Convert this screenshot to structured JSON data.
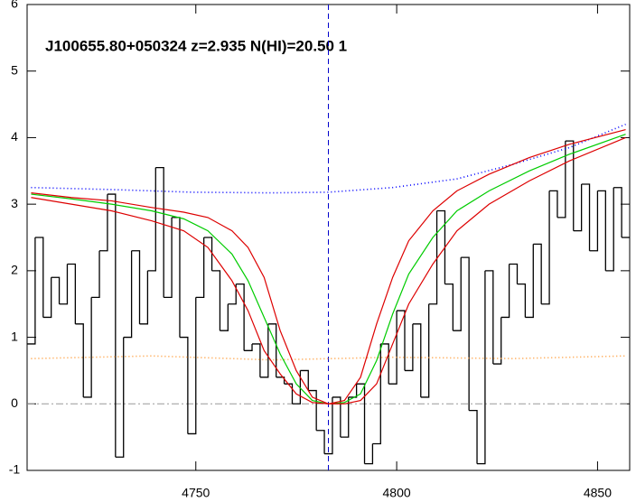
{
  "chart_data": {
    "type": "line",
    "annotation": "J100655.80+050324 z=2.935 N(HI)=20.50 1",
    "xlim": [
      4708,
      4858
    ],
    "ylim": [
      -1,
      6
    ],
    "xticks": [
      4750,
      4800,
      4850
    ],
    "yticks": [
      -1,
      0,
      1,
      2,
      3,
      4,
      5,
      6
    ],
    "zero_line": 0,
    "vline": 4783,
    "series": [
      {
        "color": "#000000",
        "steps": true,
        "dash": "none",
        "x": [
          4709,
          4711,
          4713,
          4715,
          4717,
          4719,
          4721,
          4723,
          4725,
          4727,
          4729,
          4731,
          4733,
          4735,
          4737,
          4739,
          4741,
          4743,
          4745,
          4747,
          4749,
          4751,
          4753,
          4755,
          4757,
          4759,
          4761,
          4763,
          4765,
          4767,
          4769,
          4771,
          4773,
          4775,
          4777,
          4779,
          4781,
          4783,
          4785,
          4787,
          4789,
          4791,
          4793,
          4795,
          4797,
          4799,
          4801,
          4803,
          4805,
          4807,
          4809,
          4811,
          4813,
          4815,
          4817,
          4819,
          4821,
          4823,
          4825,
          4827,
          4829,
          4831,
          4833,
          4835,
          4837,
          4839,
          4841,
          4843,
          4845,
          4847,
          4849,
          4851,
          4853,
          4855,
          4857
        ],
        "values": [
          0.9,
          2.5,
          1.3,
          1.9,
          1.5,
          2.1,
          1.2,
          0.1,
          1.6,
          2.3,
          3.15,
          -0.8,
          1.0,
          2.3,
          1.2,
          2.0,
          3.55,
          1.6,
          2.8,
          1.0,
          -0.45,
          1.6,
          2.5,
          2.0,
          1.1,
          1.5,
          1.8,
          0.8,
          0.9,
          0.4,
          1.2,
          0.4,
          0.3,
          0.0,
          0.5,
          0.2,
          -0.4,
          -0.75,
          0.1,
          -0.5,
          0.1,
          0.3,
          -0.9,
          -0.6,
          0.9,
          0.3,
          1.4,
          0.5,
          1.2,
          0.1,
          1.5,
          2.9,
          1.8,
          1.1,
          2.2,
          -0.1,
          -0.9,
          2.0,
          0.6,
          1.3,
          2.1,
          1.8,
          1.3,
          2.4,
          1.5,
          3.2,
          2.8,
          3.95,
          2.6,
          3.3,
          2.3,
          3.2,
          2.0,
          3.25,
          2.5
        ]
      },
      {
        "color": "#ff9933",
        "steps": false,
        "dash": "1 3",
        "x": [
          4709,
          4739,
          4769,
          4799,
          4829,
          4857
        ],
        "values": [
          0.68,
          0.72,
          0.66,
          0.7,
          0.68,
          0.72
        ]
      },
      {
        "color": "#0000ff",
        "steps": false,
        "dash": "1 3",
        "x": [
          4709,
          4729,
          4749,
          4769,
          4783,
          4799,
          4815,
          4829,
          4843,
          4857
        ],
        "values": [
          3.25,
          3.22,
          3.18,
          3.17,
          3.18,
          3.25,
          3.38,
          3.6,
          3.85,
          4.2
        ]
      },
      {
        "color": "#00cc00",
        "steps": false,
        "dash": "none",
        "x": [
          4709,
          4719,
          4729,
          4739,
          4747,
          4753,
          4759,
          4763,
          4767,
          4771,
          4775,
          4779,
          4783,
          4787,
          4791,
          4795,
          4799,
          4803,
          4809,
          4815,
          4823,
          4833,
          4843,
          4857
        ],
        "values": [
          3.15,
          3.08,
          3.0,
          2.9,
          2.78,
          2.6,
          2.25,
          1.85,
          1.3,
          0.75,
          0.3,
          0.05,
          0,
          0.02,
          0.15,
          0.65,
          1.35,
          1.95,
          2.5,
          2.9,
          3.2,
          3.5,
          3.75,
          4.05
        ]
      },
      {
        "color": "#dd0000",
        "steps": false,
        "dash": "none",
        "x": [
          4709,
          4719,
          4729,
          4739,
          4747,
          4753,
          4759,
          4763,
          4767,
          4771,
          4775,
          4779,
          4783,
          4787,
          4791,
          4795,
          4799,
          4803,
          4809,
          4815,
          4823,
          4833,
          4843,
          4857
        ],
        "values": [
          3.17,
          3.1,
          3.05,
          2.95,
          2.88,
          2.8,
          2.6,
          2.35,
          1.9,
          1.1,
          0.5,
          0.1,
          0,
          0.05,
          0.4,
          1.2,
          1.9,
          2.45,
          2.9,
          3.2,
          3.45,
          3.7,
          3.9,
          4.12
        ]
      },
      {
        "color": "#dd0000",
        "steps": false,
        "dash": "none",
        "x": [
          4709,
          4719,
          4729,
          4739,
          4747,
          4753,
          4759,
          4763,
          4767,
          4771,
          4775,
          4779,
          4783,
          4787,
          4791,
          4795,
          4799,
          4803,
          4809,
          4815,
          4823,
          4833,
          4843,
          4857
        ],
        "values": [
          3.1,
          3.0,
          2.9,
          2.75,
          2.6,
          2.35,
          1.85,
          1.4,
          0.8,
          0.45,
          0.15,
          0.02,
          0,
          0,
          0.05,
          0.3,
          0.9,
          1.5,
          2.1,
          2.6,
          3.0,
          3.35,
          3.65,
          4.0
        ]
      }
    ]
  }
}
